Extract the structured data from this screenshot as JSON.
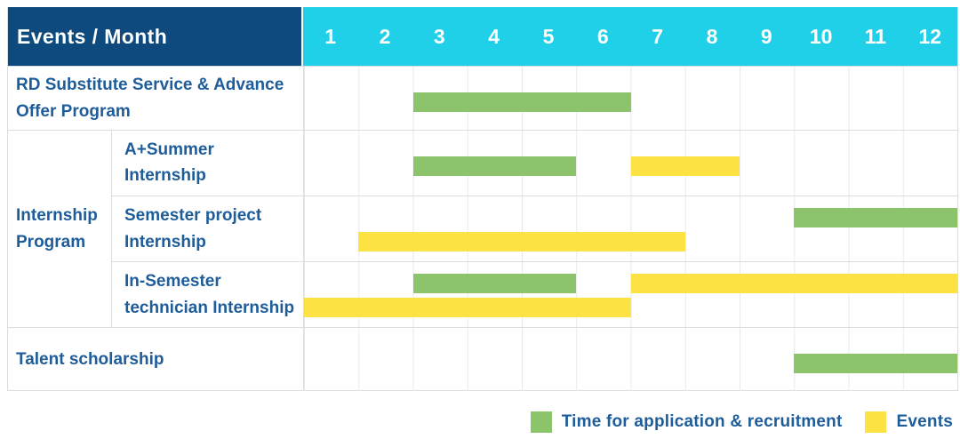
{
  "colors": {
    "navy": "#0e4a7e",
    "cyan": "#20d0e8",
    "green": "#8bc46a",
    "yellow": "#fde244",
    "text_blue": "#1e5d9a",
    "border": "#d9dee3",
    "gridline": "#e6eaee"
  },
  "header": {
    "title": "Events / Month",
    "months": [
      "1",
      "2",
      "3",
      "4",
      "5",
      "6",
      "7",
      "8",
      "9",
      "10",
      "11",
      "12"
    ]
  },
  "chart_data": {
    "type": "gantt",
    "x_unit": "month",
    "x_range": [
      1,
      12
    ],
    "bar_types": {
      "application": "Time for application & recruitment",
      "event": "Events"
    },
    "groups": [
      {
        "label": "RD Substitute Service & Advance Offer Program",
        "rows": [
          {
            "sublabel": null,
            "bars": [
              {
                "type": "application",
                "start_month": 3,
                "end_month": 6,
                "line": "single"
              }
            ]
          }
        ]
      },
      {
        "label": "Internship Program",
        "rows": [
          {
            "sublabel": "A+Summer Internship",
            "bars": [
              {
                "type": "application",
                "start_month": 3,
                "end_month": 5,
                "line": "single"
              },
              {
                "type": "event",
                "start_month": 7,
                "end_month": 8,
                "line": "single"
              }
            ]
          },
          {
            "sublabel": "Semester project Internship",
            "bars": [
              {
                "type": "application",
                "start_month": 10,
                "end_month": 12,
                "line": "upper"
              },
              {
                "type": "event",
                "start_month": 2,
                "end_month": 7,
                "line": "lower"
              }
            ]
          },
          {
            "sublabel": "In-Semester technician Internship",
            "bars": [
              {
                "type": "application",
                "start_month": 3,
                "end_month": 5,
                "line": "upper"
              },
              {
                "type": "event",
                "start_month": 7,
                "end_month": 12,
                "line": "upper"
              },
              {
                "type": "event",
                "start_month": 1,
                "end_month": 6,
                "line": "lower"
              }
            ]
          }
        ]
      },
      {
        "label": "Talent scholarship",
        "rows": [
          {
            "sublabel": null,
            "bars": [
              {
                "type": "application",
                "start_month": 10,
                "end_month": 12,
                "line": "single"
              }
            ]
          }
        ]
      }
    ],
    "legend": [
      {
        "type": "application",
        "label": "Time for application & recruitment"
      },
      {
        "type": "event",
        "label": "Events"
      }
    ]
  }
}
